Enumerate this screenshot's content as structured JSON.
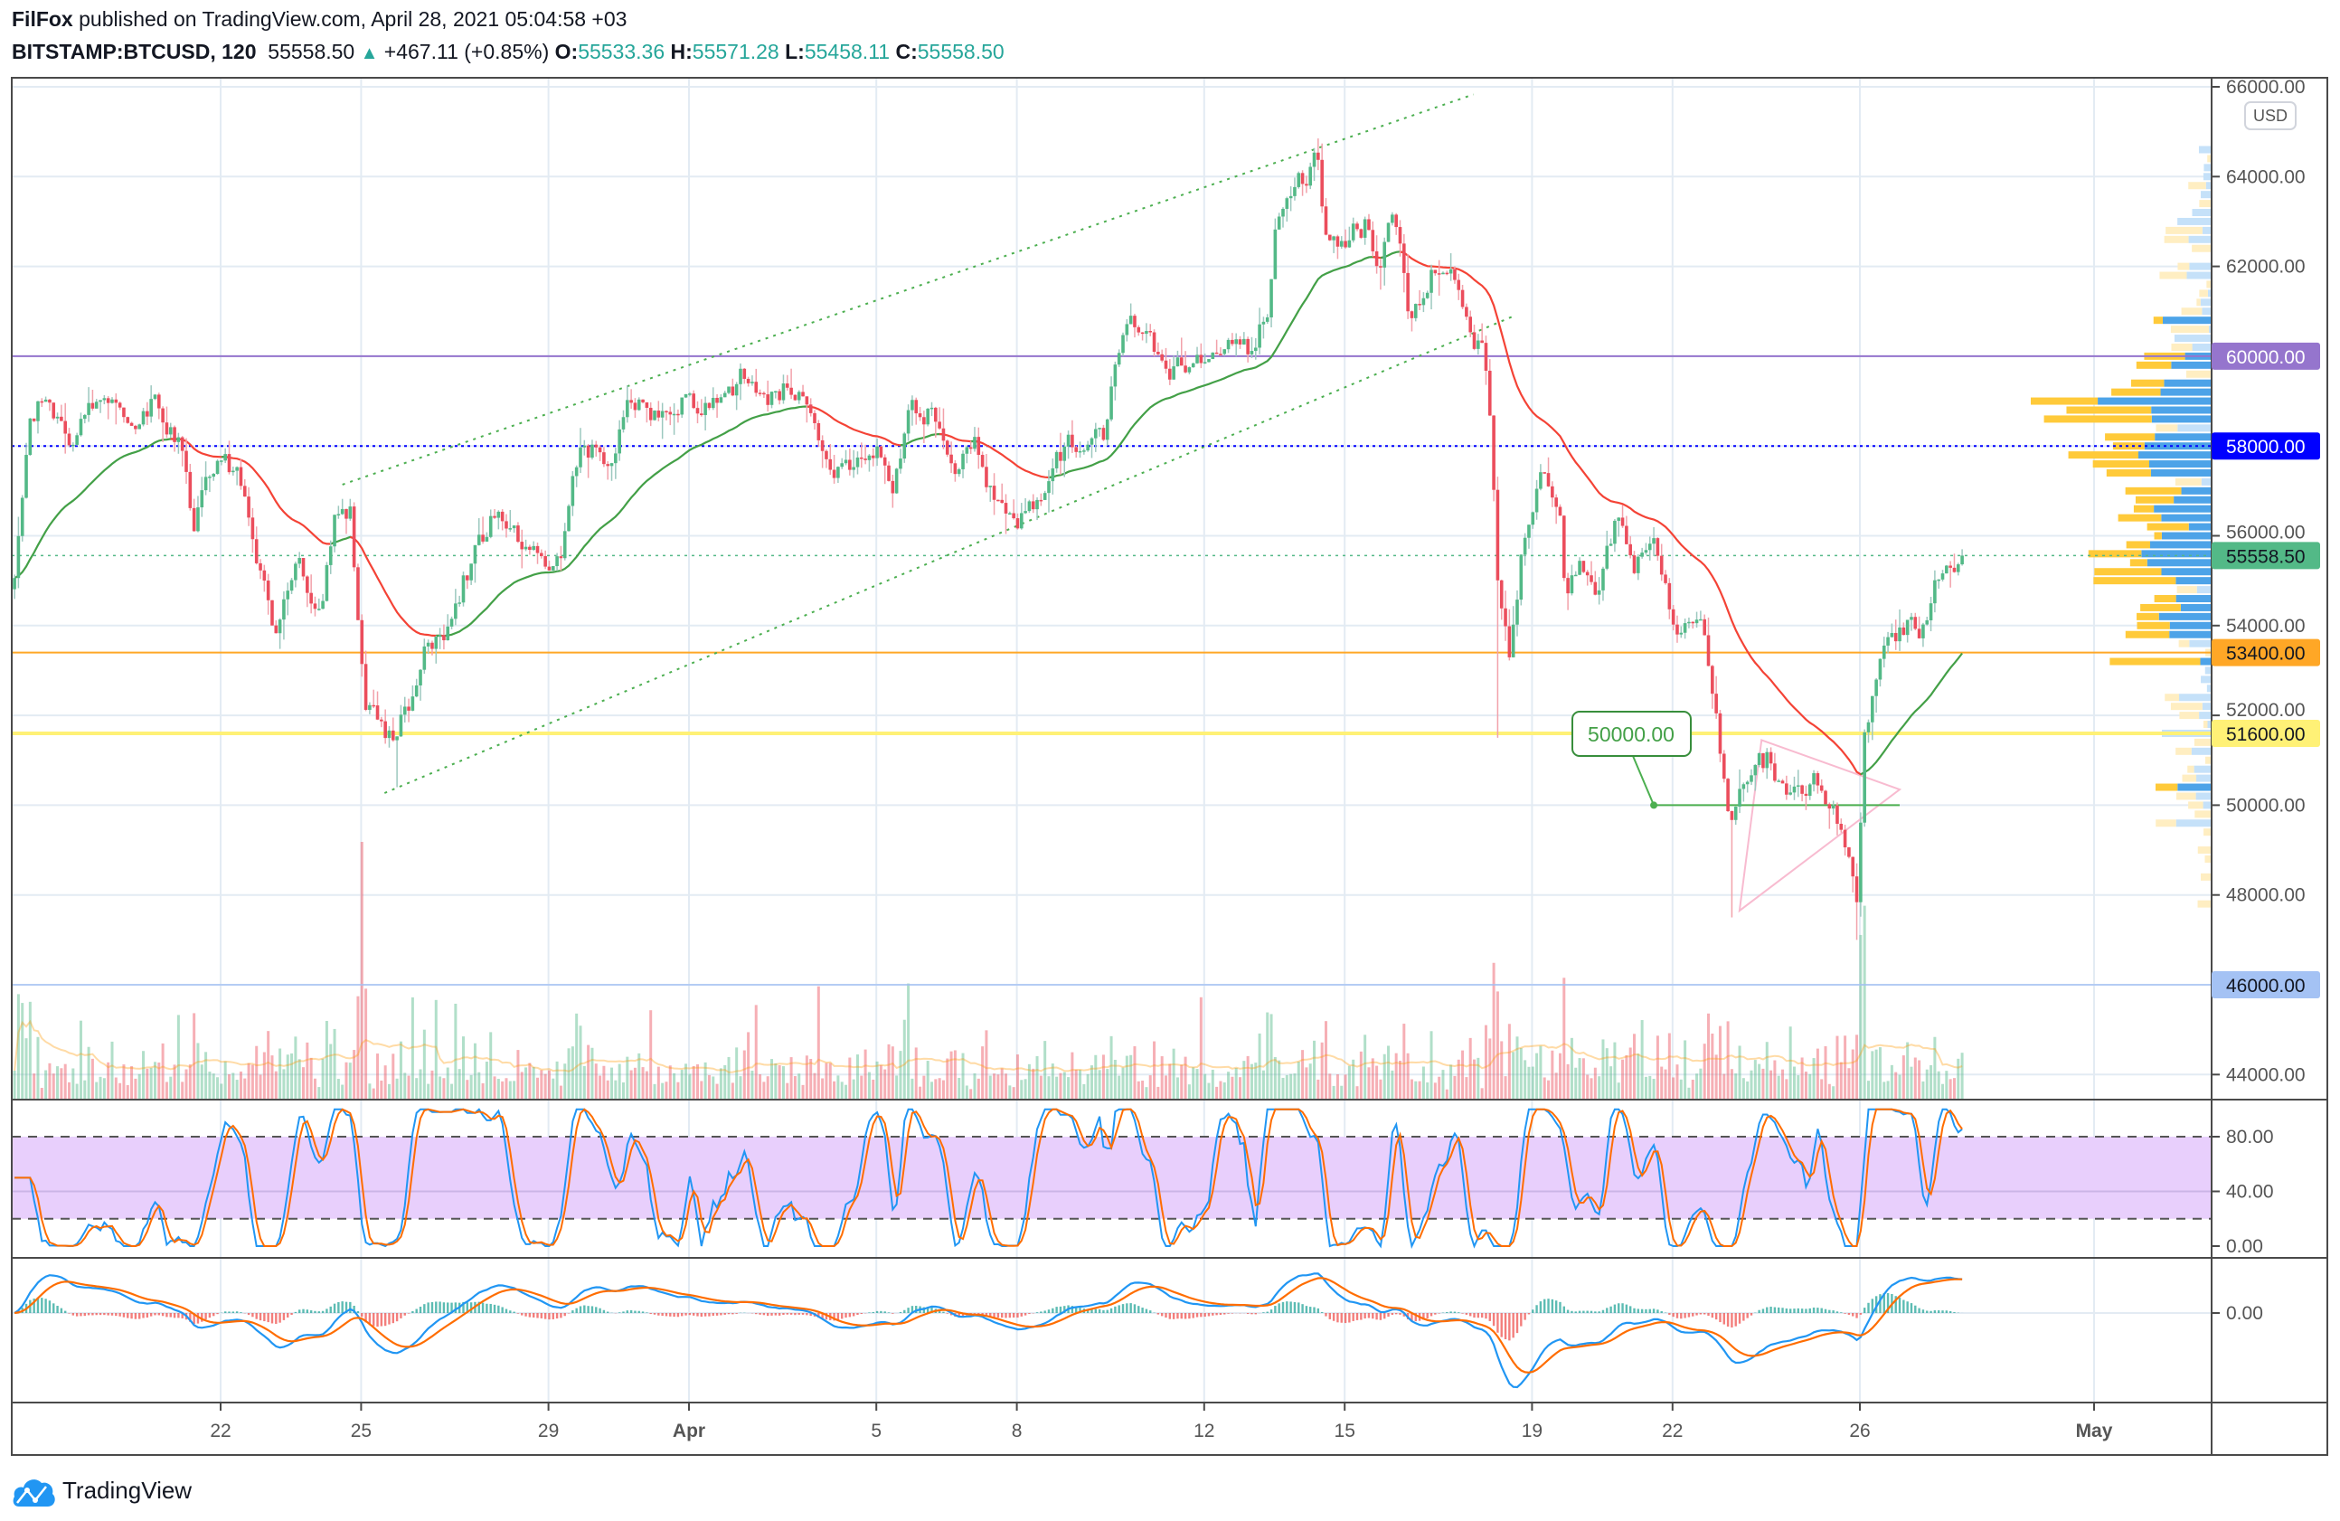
{
  "header": {
    "author": "FilFox",
    "published": " published on TradingView.com, April 28, 2021 05:04:58 +03",
    "symbol": "BITSTAMP:BTCUSD, 120",
    "last": "55558.50",
    "change": "+467.11 (+0.85%)",
    "o_label": "O:",
    "o": "55533.36",
    "h_label": "H:",
    "h": "55571.28",
    "l_label": "L:",
    "l": "55458.11",
    "c_label": "C:",
    "c": "55558.50"
  },
  "currency": "USD",
  "logo_text": "TradingView",
  "colors": {
    "up": "#53b987",
    "down": "#eb4d5c",
    "grid": "#e3ebf3",
    "frame": "#4a4a4a"
  },
  "chart_data": {
    "type": "candlestick",
    "symbol": "BITSTAMP:BTCUSD",
    "interval_minutes": 120,
    "day_unit": "days since Feb 28 2021 (Apr 1 = 32)",
    "price_axis": {
      "min": 44000,
      "max": 66000,
      "step": 2000,
      "ticks": [
        "44000.00",
        "46000.00",
        "48000.00",
        "50000.00",
        "52000.00",
        "54000.00",
        "56000.00",
        "58000.00",
        "60000.00",
        "62000.00",
        "64000.00",
        "66000.00"
      ]
    },
    "time_ticks": [
      {
        "label": "22",
        "day": 22
      },
      {
        "label": "25",
        "day": 25
      },
      {
        "label": "29",
        "day": 29
      },
      {
        "label": "Apr",
        "day": 32,
        "bold": true
      },
      {
        "label": "5",
        "day": 36
      },
      {
        "label": "8",
        "day": 39
      },
      {
        "label": "12",
        "day": 43
      },
      {
        "label": "15",
        "day": 46
      },
      {
        "label": "19",
        "day": 50
      },
      {
        "label": "22",
        "day": 53
      },
      {
        "label": "26",
        "day": 57
      },
      {
        "label": "May",
        "day": 62,
        "bold": true
      }
    ],
    "price_path": [
      [
        17.6,
        54810
      ],
      [
        17.92,
        58300
      ],
      [
        18.24,
        59130
      ],
      [
        18.72,
        57970
      ],
      [
        19.2,
        58630
      ],
      [
        19.68,
        58960
      ],
      [
        20.15,
        58300
      ],
      [
        20.63,
        59130
      ],
      [
        21.11,
        57970
      ],
      [
        21.43,
        56310
      ],
      [
        21.9,
        57630
      ],
      [
        22.38,
        57300
      ],
      [
        22.86,
        55310
      ],
      [
        23.18,
        53980
      ],
      [
        23.66,
        55310
      ],
      [
        24.13,
        54310
      ],
      [
        24.45,
        56310
      ],
      [
        24.77,
        56470
      ],
      [
        24.93,
        53980
      ],
      [
        25.09,
        52320
      ],
      [
        25.41,
        51990
      ],
      [
        25.73,
        51330
      ],
      [
        26.04,
        52320
      ],
      [
        26.36,
        53320
      ],
      [
        26.84,
        53980
      ],
      [
        27.16,
        54980
      ],
      [
        27.8,
        56310
      ],
      [
        28.27,
        56140
      ],
      [
        28.75,
        55640
      ],
      [
        29.23,
        55310
      ],
      [
        29.55,
        57970
      ],
      [
        30.03,
        57970
      ],
      [
        30.34,
        57300
      ],
      [
        30.66,
        59130
      ],
      [
        31.3,
        58630
      ],
      [
        31.78,
        59130
      ],
      [
        32.25,
        58960
      ],
      [
        32.73,
        58800
      ],
      [
        33.21,
        59630
      ],
      [
        33.85,
        59130
      ],
      [
        34.48,
        59460
      ],
      [
        34.96,
        57630
      ],
      [
        35.44,
        57630
      ],
      [
        36.08,
        57970
      ],
      [
        36.39,
        57300
      ],
      [
        36.71,
        58960
      ],
      [
        37.19,
        58800
      ],
      [
        37.67,
        57800
      ],
      [
        38.15,
        57970
      ],
      [
        38.46,
        56970
      ],
      [
        38.94,
        56140
      ],
      [
        39.42,
        56640
      ],
      [
        39.74,
        57800
      ],
      [
        40.22,
        58130
      ],
      [
        40.85,
        58300
      ],
      [
        41.33,
        60790
      ],
      [
        41.81,
        60290
      ],
      [
        42.29,
        59630
      ],
      [
        42.76,
        59790
      ],
      [
        43.4,
        60290
      ],
      [
        44.04,
        59960
      ],
      [
        44.36,
        61120
      ],
      [
        44.52,
        62950
      ],
      [
        44.83,
        63610
      ],
      [
        45.15,
        63940
      ],
      [
        45.38,
        64610
      ],
      [
        45.63,
        62280
      ],
      [
        45.95,
        62610
      ],
      [
        46.43,
        62950
      ],
      [
        46.75,
        61620
      ],
      [
        47.06,
        63440
      ],
      [
        47.38,
        60790
      ],
      [
        47.86,
        61950
      ],
      [
        48.24,
        62280
      ],
      [
        48.66,
        60950
      ],
      [
        48.97,
        59960
      ],
      [
        49.13,
        57970
      ],
      [
        49.29,
        54650
      ],
      [
        49.52,
        53480
      ],
      [
        49.77,
        55640
      ],
      [
        50.25,
        57300
      ],
      [
        50.57,
        56970
      ],
      [
        50.73,
        54650
      ],
      [
        51.04,
        55640
      ],
      [
        51.36,
        54650
      ],
      [
        51.84,
        56310
      ],
      [
        52.16,
        55310
      ],
      [
        52.64,
        55640
      ],
      [
        53.11,
        53650
      ],
      [
        53.59,
        54650
      ],
      [
        53.91,
        51990
      ],
      [
        54.23,
        49330
      ],
      [
        54.55,
        50660
      ],
      [
        55.03,
        50990
      ],
      [
        55.5,
        49990
      ],
      [
        55.98,
        50660
      ],
      [
        56.46,
        49990
      ],
      [
        56.94,
        47840
      ],
      [
        57.1,
        51660
      ],
      [
        57.41,
        53320
      ],
      [
        57.89,
        53980
      ],
      [
        58.37,
        53980
      ],
      [
        58.69,
        55140
      ],
      [
        59.2,
        55558.5
      ]
    ],
    "notable_wicks": [
      {
        "day": 25.75,
        "low": 50400
      },
      {
        "day": 45.4,
        "high": 64850
      },
      {
        "day": 49.3,
        "low": 51500
      },
      {
        "day": 54.3,
        "low": 47500
      },
      {
        "day": 56.94,
        "low": 47000
      }
    ],
    "last_price": 55558.5,
    "levels": [
      {
        "price": 60000,
        "label": "60000.00",
        "color": "#9575cd",
        "text": "#ffffff",
        "style": "solid"
      },
      {
        "price": 58000,
        "label": "58000.00",
        "color": "#0000ff",
        "text": "#ffffff",
        "style": "dotted"
      },
      {
        "price": 55558.5,
        "label": "55558.50",
        "color": "#53b987",
        "text": "#131722",
        "style": "dotted-last"
      },
      {
        "price": 53400,
        "label": "53400.00",
        "color": "#ffa726",
        "text": "#131722",
        "style": "solid"
      },
      {
        "price": 51600,
        "label": "51600.00",
        "color": "#fff176",
        "text": "#131722",
        "style": "thick"
      },
      {
        "price": 46000,
        "label": "46000.00",
        "color": "#a4c2f4",
        "text": "#131722",
        "style": "thin"
      }
    ],
    "channel": {
      "upper": [
        [
          24.6,
          57140
        ],
        [
          48.75,
          65830
        ]
      ],
      "lower": [
        [
          25.5,
          50270
        ],
        [
          49.6,
          60890
        ]
      ]
    },
    "triangle": [
      [
        54.9,
        51450
      ],
      [
        57.85,
        50350
      ],
      [
        54.43,
        47650
      ]
    ],
    "callout": {
      "label": "50000.00",
      "price": 50000,
      "from_day": 52.6,
      "to_day": 57.85
    },
    "ema_period": 40,
    "rsi_pane": {
      "ticks": [
        "80.00",
        "40.00",
        "0.00"
      ],
      "upper": 80,
      "lower": 20
    },
    "macd_pane": {
      "ticks": [
        "0.00"
      ]
    }
  }
}
